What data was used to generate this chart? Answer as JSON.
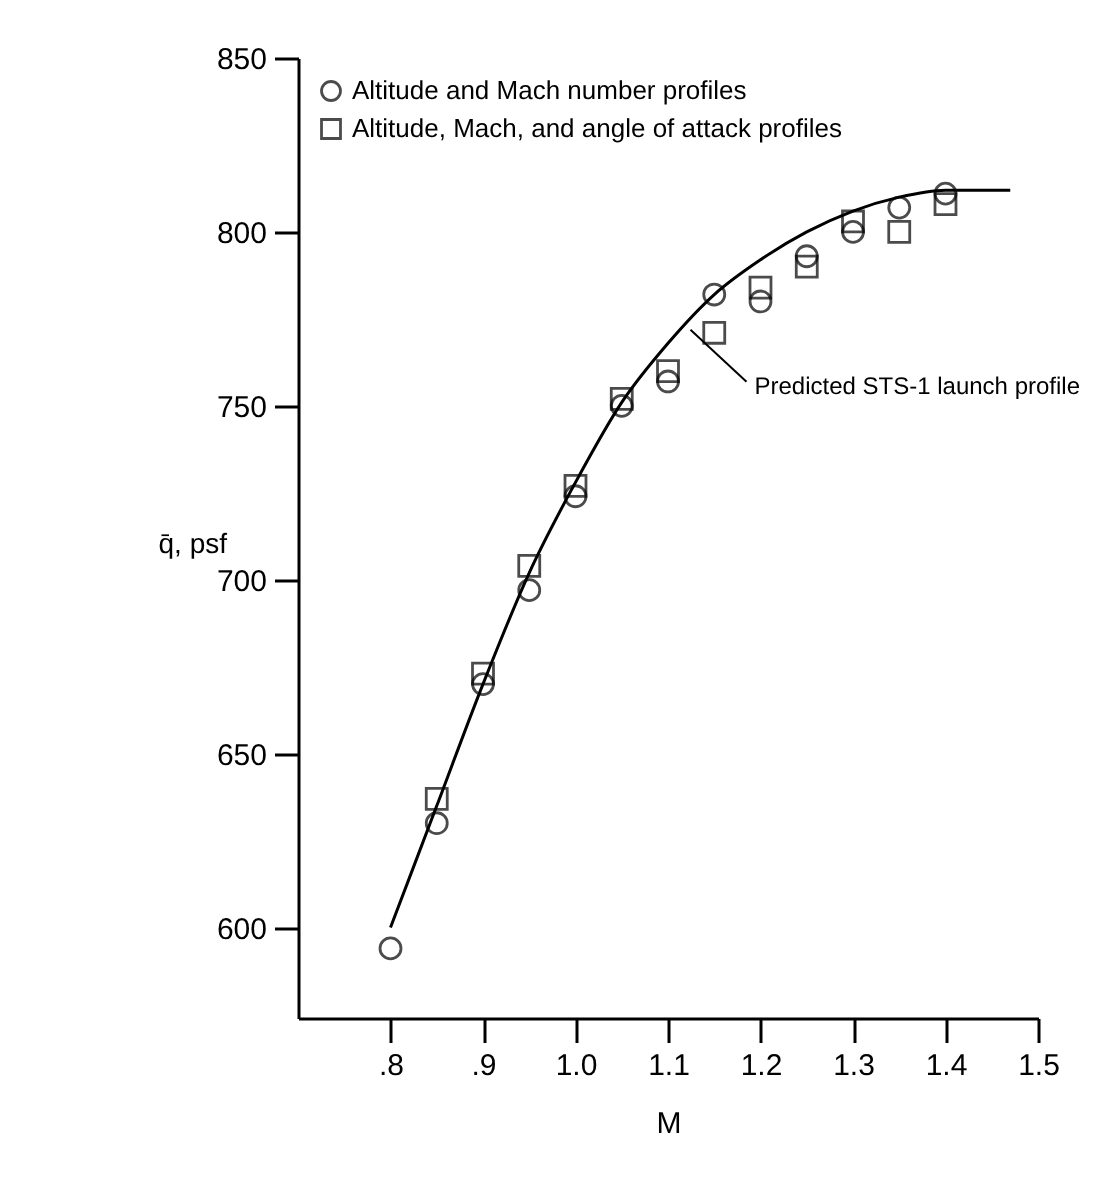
{
  "chart_data": {
    "type": "scatter",
    "xlabel": "M",
    "ylabel": "q̄, psf",
    "xlim": [
      0.7,
      1.5
    ],
    "ylim": [
      574,
      850
    ],
    "xticks": [
      {
        "value": 0.8,
        "label": ".8"
      },
      {
        "value": 0.9,
        "label": ".9"
      },
      {
        "value": 1.0,
        "label": "1.0"
      },
      1.1,
      1.2,
      1.3,
      1.4,
      1.5
    ],
    "yticks": [
      600,
      650,
      700,
      750,
      800,
      850
    ],
    "grid": false,
    "legend": "top left",
    "series": [
      {
        "name": "Altitude and Mach number profiles",
        "marker": "circle",
        "color": "#000000",
        "x": [
          0.8,
          0.85,
          0.9,
          0.95,
          1.0,
          1.05,
          1.1,
          1.15,
          1.2,
          1.25,
          1.3,
          1.35,
          1.4
        ],
        "values": [
          594,
          630,
          670,
          697,
          724,
          750,
          757,
          782,
          780,
          793,
          800,
          807,
          811
        ]
      },
      {
        "name": "Altitude, Mach, and angle of attack profiles",
        "marker": "square",
        "color": "#000000",
        "x": [
          0.85,
          0.9,
          0.95,
          1.0,
          1.05,
          1.1,
          1.15,
          1.2,
          1.25,
          1.3,
          1.35,
          1.4
        ],
        "values": [
          637,
          673,
          704,
          727,
          752,
          760,
          771,
          784,
          790,
          803,
          800,
          808
        ]
      },
      {
        "type": "line",
        "marker": "none",
        "color": "#000000",
        "x": [
          0.8,
          0.85,
          0.9,
          0.95,
          1.0,
          1.05,
          1.1,
          1.15,
          1.2,
          1.25,
          1.3,
          1.35,
          1.4,
          1.47
        ],
        "values": [
          600,
          635,
          670,
          702,
          728,
          751,
          768,
          782,
          792,
          800,
          806,
          810,
          812,
          812
        ]
      }
    ],
    "annotations": [
      {
        "text": "Predicted STS-1 launch profile",
        "x": 1.12,
        "y": 773
      }
    ]
  }
}
